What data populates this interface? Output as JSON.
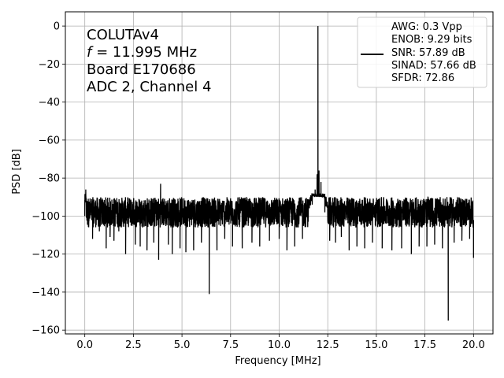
{
  "chart_data": {
    "type": "line",
    "xlabel": "Frequency [MHz]",
    "ylabel": "PSD [dB]",
    "xlim": [
      -1,
      21
    ],
    "ylim": [
      -162,
      7.5
    ],
    "xticks": [
      0,
      2.5,
      5,
      7.5,
      10,
      12.5,
      15,
      17.5,
      20
    ],
    "xtick_labels": [
      "0.0",
      "2.5",
      "5.0",
      "7.5",
      "10.0",
      "12.5",
      "15.0",
      "17.5",
      "20.0"
    ],
    "yticks": [
      0,
      -20,
      -40,
      -60,
      -80,
      -100,
      -120,
      -140,
      -160
    ],
    "ytick_labels": [
      "0",
      "−20",
      "−40",
      "−60",
      "−80",
      "−100",
      "−120",
      "−140",
      "−160"
    ],
    "grid": true,
    "legend_position": "top-right",
    "annotation_lines": [
      "COLUTAv4",
      "f = 11.995 MHz",
      "Board E170686",
      "ADC 2, Channel 4"
    ],
    "legend_lines": [
      "AWG: 0.3 Vpp",
      "ENOB: 9.29 bits",
      "SNR: 57.89 dB",
      "SINAD: 57.66 dB",
      "SFDR: 72.86"
    ],
    "line_color": "#000000",
    "noise_floor_db": -98,
    "series": [
      {
        "x": [
          0.0,
          0.05,
          0.4,
          0.75,
          1.1,
          1.3,
          1.5,
          1.75,
          2.1,
          2.6,
          2.85,
          3.2,
          3.55,
          3.8,
          3.9,
          4.3,
          4.5,
          4.9,
          5.2,
          5.6,
          6.0,
          6.4,
          6.8,
          7.2,
          7.6,
          8.1,
          8.6,
          9.0,
          9.5,
          10.0,
          10.4,
          10.8,
          11.2,
          11.5,
          11.7,
          11.85,
          11.95,
          11.995,
          12.05,
          12.15,
          12.35,
          12.6,
          12.9,
          13.2,
          13.6,
          14.0,
          14.4,
          14.8,
          15.3,
          15.8,
          16.3,
          16.8,
          17.2,
          17.6,
          18.0,
          18.4,
          18.7,
          19.0,
          19.4,
          19.8,
          20.0
        ],
        "y": [
          -100,
          -86,
          -112,
          -108,
          -117,
          -111,
          -113,
          -108,
          -120,
          -115,
          -116,
          -118,
          -114,
          -123,
          -83,
          -115,
          -120,
          -117,
          -119,
          -118,
          -114,
          -141,
          -118,
          -112,
          -116,
          -117,
          -114,
          -116,
          -113,
          -112,
          -118,
          -116,
          -112,
          -101,
          -94,
          -86,
          -78,
          0,
          -76,
          -82,
          -98,
          -113,
          -114,
          -111,
          -118,
          -116,
          -117,
          -114,
          -117,
          -118,
          -117,
          -120,
          -116,
          -116,
          -115,
          -117,
          -155,
          -114,
          -113,
          -112,
          -122
        ]
      }
    ]
  }
}
